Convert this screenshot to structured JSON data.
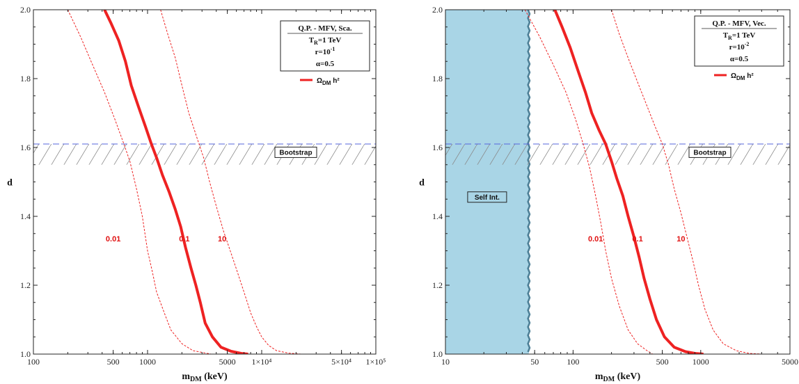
{
  "colors": {
    "relic": "#ee2222",
    "bootstrap_line": "#5566dd",
    "hatch": "#888888",
    "self_int_fill": "#a9d5e6",
    "self_int_edge": "#4d7f96"
  },
  "chart_data": [
    {
      "type": "line",
      "x_scale": "log",
      "xlim": [
        100,
        100000
      ],
      "ylim": [
        1.0,
        2.0
      ],
      "xlabel": "m",
      "xlabel_sub": "DM",
      "xlabel_unit": " (keV)",
      "ylabel": "d",
      "x_ticks": [
        {
          "value": 100,
          "label": "100"
        },
        {
          "value": 500,
          "label": "500"
        },
        {
          "value": 1000,
          "label": "1000"
        },
        {
          "value": 5000,
          "label": "5000"
        },
        {
          "value": 10000,
          "label": "1×10⁴"
        },
        {
          "value": 50000,
          "label": "5×10⁴"
        },
        {
          "value": 100000,
          "label": "1×10⁵"
        }
      ],
      "y_ticks": [
        {
          "value": 1.0,
          "label": "1.0"
        },
        {
          "value": 1.2,
          "label": "1.2"
        },
        {
          "value": 1.4,
          "label": "1.4"
        },
        {
          "value": 1.6,
          "label": "1.6"
        },
        {
          "value": 1.8,
          "label": "1.8"
        },
        {
          "value": 2.0,
          "label": "2.0"
        }
      ],
      "legend": {
        "lines": [
          "Q.P. - MFV, Sca.",
          "T_R=1 TeV",
          "r=10^-1",
          "α=0.5"
        ],
        "series_label": "Ω_DM h²",
        "placement": "top-right"
      },
      "bootstrap": {
        "y": 1.61,
        "y_low": 1.55,
        "label": "Bootstrap"
      },
      "series": [
        {
          "name": "0.01",
          "style": "dashed",
          "x": [
            200,
            260,
            330,
            420,
            520,
            620,
            700,
            800,
            900,
            1000,
            1100,
            1200,
            1400,
            1600,
            2000,
            2500,
            3000,
            3600
          ],
          "y": [
            2.0,
            1.92,
            1.84,
            1.76,
            1.68,
            1.61,
            1.56,
            1.48,
            1.4,
            1.3,
            1.24,
            1.18,
            1.12,
            1.07,
            1.03,
            1.01,
            1.005,
            1.0
          ]
        },
        {
          "name": "0.1",
          "style": "solid",
          "x": [
            420,
            480,
            560,
            640,
            720,
            830,
            960,
            1080,
            1200,
            1350,
            1550,
            1750,
            1950,
            2150,
            2400,
            2650,
            2900,
            3200,
            3700,
            4400,
            5400,
            6600,
            7600
          ],
          "y": [
            2.0,
            1.96,
            1.91,
            1.85,
            1.78,
            1.72,
            1.66,
            1.61,
            1.57,
            1.52,
            1.47,
            1.42,
            1.37,
            1.31,
            1.25,
            1.2,
            1.15,
            1.09,
            1.05,
            1.02,
            1.008,
            1.002,
            1.0
          ]
        },
        {
          "name": "10",
          "style": "dashed",
          "x": [
            1300,
            1500,
            1750,
            2000,
            2300,
            2700,
            3100,
            3500,
            4000,
            4600,
            5300,
            6100,
            7000,
            8000,
            9000,
            10000,
            11500,
            13500,
            17000,
            22000
          ],
          "y": [
            2.0,
            1.93,
            1.86,
            1.78,
            1.7,
            1.63,
            1.57,
            1.5,
            1.43,
            1.36,
            1.3,
            1.24,
            1.18,
            1.12,
            1.08,
            1.05,
            1.025,
            1.01,
            1.003,
            1.0
          ]
        }
      ],
      "curve_labels": [
        {
          "text": "0.01",
          "x": 500,
          "y": 1.335
        },
        {
          "text": "0.1",
          "x": 2100,
          "y": 1.335
        },
        {
          "text": "10",
          "x": 4500,
          "y": 1.335
        }
      ]
    },
    {
      "type": "line",
      "x_scale": "log",
      "xlim": [
        10,
        5000
      ],
      "ylim": [
        1.0,
        2.0
      ],
      "xlabel": "m",
      "xlabel_sub": "DM",
      "xlabel_unit": " (keV)",
      "ylabel": "d",
      "x_ticks": [
        {
          "value": 10,
          "label": "10"
        },
        {
          "value": 50,
          "label": "50"
        },
        {
          "value": 100,
          "label": "100"
        },
        {
          "value": 500,
          "label": "500"
        },
        {
          "value": 1000,
          "label": "1000"
        },
        {
          "value": 5000,
          "label": "5000"
        }
      ],
      "y_ticks": [
        {
          "value": 1.0,
          "label": "1.0"
        },
        {
          "value": 1.2,
          "label": "1.2"
        },
        {
          "value": 1.4,
          "label": "1.4"
        },
        {
          "value": 1.6,
          "label": "1.6"
        },
        {
          "value": 1.8,
          "label": "1.8"
        },
        {
          "value": 2.0,
          "label": "2.0"
        }
      ],
      "legend": {
        "lines": [
          "Q.P. - MFV, Vec.",
          "T_R=1 TeV",
          "r=10^-2",
          "α=0.5"
        ],
        "series_label": "Ω_DM h²",
        "placement": "top-right"
      },
      "bootstrap": {
        "y": 1.61,
        "y_low": 1.55,
        "label": "Bootstrap"
      },
      "self_interaction": {
        "x_max": 45,
        "label": "Self Int."
      },
      "series": [
        {
          "name": "0.01",
          "style": "dashed",
          "x": [
            42,
            55,
            70,
            88,
            105,
            120,
            135,
            150,
            165,
            180,
            200,
            230,
            270,
            320,
            380,
            420
          ],
          "y": [
            2.0,
            1.92,
            1.84,
            1.76,
            1.68,
            1.61,
            1.54,
            1.46,
            1.38,
            1.3,
            1.22,
            1.14,
            1.07,
            1.03,
            1.01,
            1.0
          ]
        },
        {
          "name": "0.1",
          "style": "solid",
          "x": [
            72,
            82,
            95,
            110,
            125,
            140,
            160,
            180,
            200,
            220,
            245,
            270,
            300,
            330,
            360,
            400,
            450,
            520,
            620,
            760,
            900,
            1050
          ],
          "y": [
            2.0,
            1.95,
            1.89,
            1.82,
            1.76,
            1.7,
            1.65,
            1.61,
            1.56,
            1.51,
            1.46,
            1.4,
            1.34,
            1.28,
            1.22,
            1.16,
            1.1,
            1.05,
            1.02,
            1.007,
            1.002,
            1.0
          ]
        },
        {
          "name": "10",
          "style": "dashed",
          "x": [
            200,
            230,
            270,
            320,
            380,
            440,
            500,
            560,
            620,
            700,
            780,
            870,
            960,
            1080,
            1250,
            1500,
            1900,
            2400,
            3000
          ],
          "y": [
            2.0,
            1.93,
            1.86,
            1.79,
            1.72,
            1.66,
            1.61,
            1.55,
            1.48,
            1.41,
            1.34,
            1.27,
            1.2,
            1.13,
            1.07,
            1.03,
            1.01,
            1.002,
            1.0
          ]
        }
      ],
      "curve_labels": [
        {
          "text": "0.01",
          "x": 150,
          "y": 1.335
        },
        {
          "text": "0.1",
          "x": 320,
          "y": 1.335
        },
        {
          "text": "10",
          "x": 700,
          "y": 1.335
        }
      ]
    }
  ]
}
